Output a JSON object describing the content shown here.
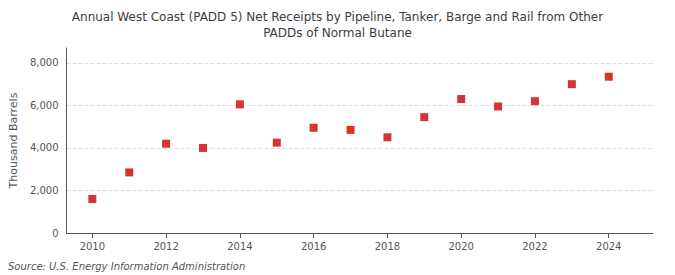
{
  "chart_data": {
    "type": "scatter",
    "title": "Annual West Coast (PADD 5) Net Receipts by Pipeline, Tanker, Barge and Rail from Other\nPADDs of Normal Butane",
    "ylabel": "Thousand Barrels",
    "source": "Source: U.S. Energy Information Administration",
    "x": [
      2010,
      2011,
      2012,
      2013,
      2014,
      2015,
      2016,
      2017,
      2018,
      2019,
      2020,
      2021,
      2022,
      2023,
      2024
    ],
    "values": [
      1600,
      2850,
      4200,
      4000,
      6050,
      4250,
      4950,
      4850,
      4500,
      5450,
      6300,
      5950,
      6200,
      7000,
      7350
    ],
    "color": "#cc0000",
    "marker": "square",
    "xlim": [
      2009.3,
      2025.2
    ],
    "ylim": [
      0,
      8700
    ],
    "xticks": [
      2010,
      2012,
      2014,
      2016,
      2018,
      2020,
      2022,
      2024
    ],
    "yticks": [
      0,
      {
        "value": 2000,
        "label": "2,000"
      },
      {
        "value": 4000,
        "label": "4,000"
      },
      {
        "value": 6000,
        "label": "6,000"
      },
      {
        "value": 8000,
        "label": "8,000"
      }
    ],
    "grid": true
  }
}
